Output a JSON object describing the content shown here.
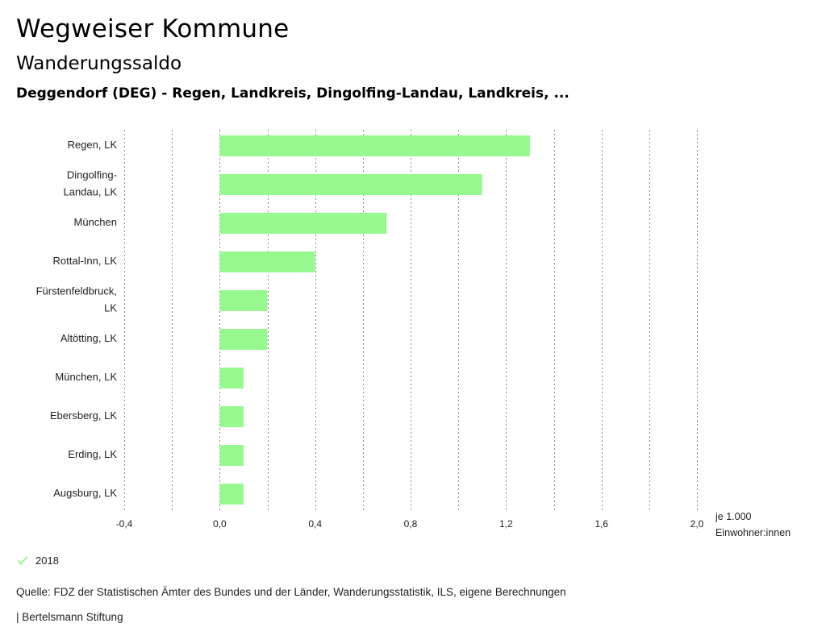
{
  "header": {
    "title": "Wegweiser Kommune",
    "subtitle": "Wanderungssaldo",
    "region": "Deggendorf (DEG) - Regen, Landkreis, Dingolfing-Landau, Landkreis, ..."
  },
  "chart_data": {
    "type": "bar",
    "orientation": "horizontal",
    "categories": [
      "Regen, LK",
      "Dingolfing-Landau, LK",
      "München",
      "Rottal-Inn, LK",
      "Fürstenfeldbruck, LK",
      "Altötting, LK",
      "München, LK",
      "Ebersberg, LK",
      "Erding, LK",
      "Augsburg, LK"
    ],
    "category_lines": [
      [
        "Regen, LK"
      ],
      [
        "Dingolfing-",
        "Landau, LK"
      ],
      [
        "München"
      ],
      [
        "Rottal-Inn, LK"
      ],
      [
        "Fürstenfeldbruck,",
        "LK"
      ],
      [
        "Altötting, LK"
      ],
      [
        "München, LK"
      ],
      [
        "Ebersberg, LK"
      ],
      [
        "Erding, LK"
      ],
      [
        "Augsburg, LK"
      ]
    ],
    "series": [
      {
        "name": "2018",
        "values": [
          1.3,
          1.1,
          0.7,
          0.4,
          0.2,
          0.2,
          0.1,
          0.1,
          0.1,
          0.1
        ]
      }
    ],
    "xlim": [
      -0.4,
      2.0
    ],
    "xticks": [
      -0.4,
      0.0,
      0.4,
      0.8,
      1.2,
      1.6,
      2.0
    ],
    "xtick_labels": [
      "-0,4",
      "0,0",
      "0,4",
      "0,8",
      "1,2",
      "1,6",
      "2,0"
    ],
    "xlabel": "je 1.000 Einwohner:innen",
    "grid": true,
    "legend": "bottom-left",
    "bar_color": "#98f890"
  },
  "unit": {
    "line1": "je 1.000",
    "line2": "Einwohner:innen"
  },
  "legend": {
    "label": "2018",
    "icon": "check-icon",
    "color": "#98f890"
  },
  "footer": {
    "source": "Quelle: FDZ der Statistischen Ämter des Bundes und der Länder, Wanderungsstatistik, ILS, eigene Berechnungen",
    "publisher": "| Bertelsmann Stiftung"
  }
}
